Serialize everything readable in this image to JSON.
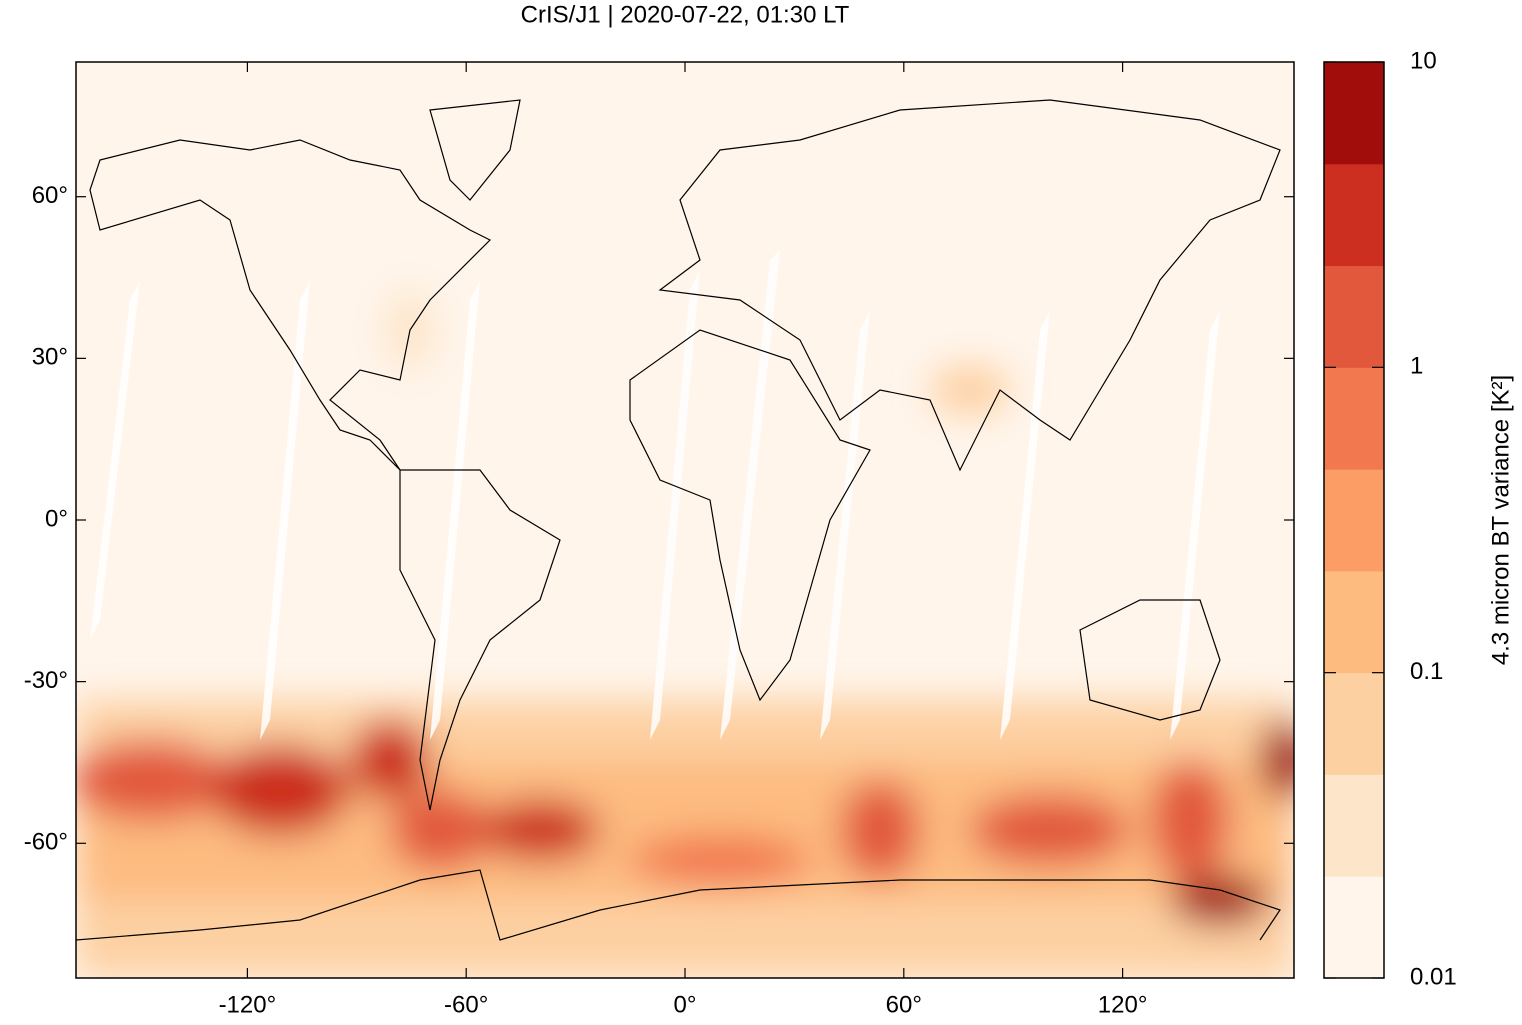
{
  "chart_data": {
    "type": "map",
    "title": "CrIS/J1 | 2020-07-22, 01:30 LT",
    "xlim": [
      -167,
      167
    ],
    "ylim": [
      -85,
      85
    ],
    "xticks": [
      {
        "value": -120,
        "label": "-120°"
      },
      {
        "value": -60,
        "label": "-60°"
      },
      {
        "value": 0,
        "label": "0°"
      },
      {
        "value": 60,
        "label": "60°"
      },
      {
        "value": 120,
        "label": "120°"
      }
    ],
    "yticks": [
      {
        "value": -60,
        "label": "-60°"
      },
      {
        "value": -30,
        "label": "-30°"
      },
      {
        "value": 0,
        "label": "0°"
      },
      {
        "value": 30,
        "label": "30°"
      },
      {
        "value": 60,
        "label": "60°"
      }
    ],
    "colorbar": {
      "label": "4.3 micron BT variance [K²]",
      "log": true,
      "lim": [
        0.01,
        10
      ],
      "ticks": [
        0.01,
        0.1,
        1,
        10
      ],
      "colors": [
        "#fff5eb",
        "#fde5c9",
        "#fdd0a2",
        "#fdbb80",
        "#fc9d65",
        "#f2784f",
        "#e2583d",
        "#cc2e1f",
        "#a00d0a"
      ]
    }
  }
}
